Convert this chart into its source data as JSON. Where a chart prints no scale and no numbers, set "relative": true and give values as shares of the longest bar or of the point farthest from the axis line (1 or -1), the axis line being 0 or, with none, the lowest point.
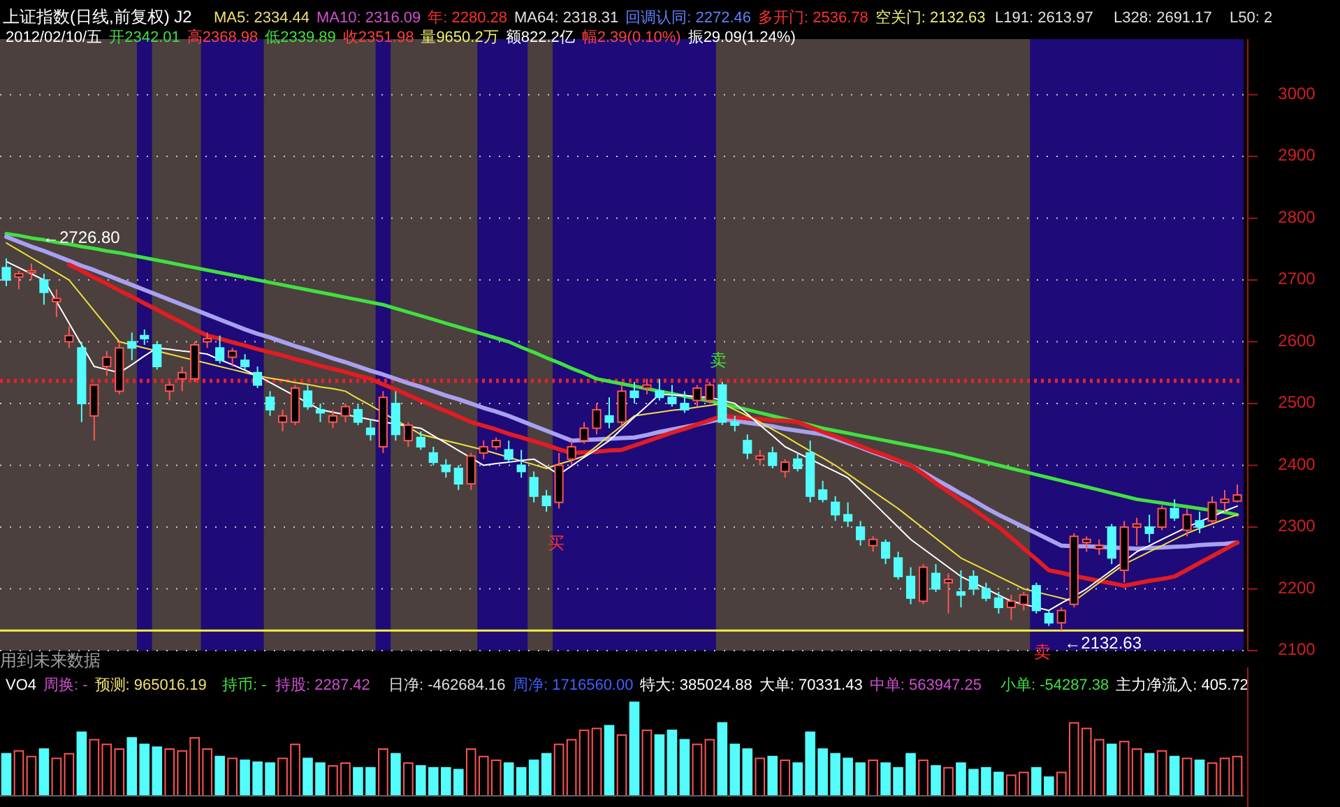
{
  "chart_data": [
    {
      "type": "candlestick",
      "title": "上证指数(日线,前复权) J2",
      "categories": [
        null,
        null,
        null,
        null,
        null,
        null,
        null,
        null,
        null,
        null,
        null,
        null,
        null,
        null,
        null,
        null,
        null,
        null,
        null,
        null,
        null,
        null,
        null,
        null,
        null,
        null,
        null,
        null,
        null,
        null,
        null,
        null,
        null,
        null,
        null,
        null,
        null,
        null,
        null,
        null,
        null,
        null,
        null,
        null,
        null,
        null,
        null,
        null,
        null,
        null,
        null,
        null,
        null,
        null,
        null,
        null,
        null,
        null,
        null,
        null,
        null,
        null,
        null,
        null,
        null,
        null,
        null,
        null,
        null,
        null,
        null,
        null,
        null,
        null,
        null,
        null,
        null,
        null,
        null,
        null,
        null,
        null,
        null,
        null,
        null,
        null,
        null,
        null,
        null,
        null,
        null,
        null,
        null,
        null,
        null,
        null,
        null,
        null,
        null
      ],
      "ohlc": [
        [
          2720,
          2735,
          2690,
          2700
        ],
        [
          2705,
          2715,
          2685,
          2710
        ],
        [
          2712,
          2726.8,
          2700,
          2715
        ],
        [
          2700,
          2710,
          2660,
          2680
        ],
        [
          2665,
          2685,
          2640,
          2670
        ],
        [
          2600,
          2625,
          2590,
          2610
        ],
        [
          2590,
          2600,
          2470,
          2500
        ],
        [
          2480,
          2530,
          2440,
          2530
        ],
        [
          2560,
          2585,
          2545,
          2575
        ],
        [
          2520,
          2600,
          2515,
          2590
        ],
        [
          2600,
          2615,
          2570,
          2590
        ],
        [
          2610,
          2620,
          2595,
          2605
        ],
        [
          2595,
          2600,
          2555,
          2560
        ],
        [
          2520,
          2535,
          2505,
          2530
        ],
        [
          2540,
          2560,
          2520,
          2550
        ],
        [
          2540,
          2600,
          2535,
          2595
        ],
        [
          2600,
          2615,
          2590,
          2605
        ],
        [
          2590,
          2610,
          2565,
          2570
        ],
        [
          2575,
          2590,
          2560,
          2585
        ],
        [
          2570,
          2580,
          2555,
          2560
        ],
        [
          2550,
          2560,
          2525,
          2530
        ],
        [
          2510,
          2520,
          2480,
          2490
        ],
        [
          2470,
          2490,
          2455,
          2480
        ],
        [
          2470,
          2530,
          2465,
          2525
        ],
        [
          2520,
          2530,
          2490,
          2495
        ],
        [
          2490,
          2500,
          2470,
          2485
        ],
        [
          2470,
          2490,
          2460,
          2480
        ],
        [
          2480,
          2500,
          2470,
          2495
        ],
        [
          2490,
          2500,
          2465,
          2470
        ],
        [
          2460,
          2475,
          2440,
          2450
        ],
        [
          2430,
          2520,
          2420,
          2510
        ],
        [
          2500,
          2520,
          2440,
          2450
        ],
        [
          2440,
          2470,
          2430,
          2465
        ],
        [
          2445,
          2455,
          2425,
          2430
        ],
        [
          2420,
          2430,
          2400,
          2405
        ],
        [
          2400,
          2410,
          2380,
          2390
        ],
        [
          2395,
          2400,
          2360,
          2370
        ],
        [
          2370,
          2420,
          2360,
          2415
        ],
        [
          2420,
          2440,
          2410,
          2430
        ],
        [
          2430,
          2445,
          2425,
          2440
        ],
        [
          2425,
          2440,
          2405,
          2410
        ],
        [
          2400,
          2425,
          2380,
          2390
        ],
        [
          2380,
          2390,
          2340,
          2350
        ],
        [
          2350,
          2360,
          2325,
          2335
        ],
        [
          2340,
          2420,
          2330,
          2400
        ],
        [
          2410,
          2440,
          2400,
          2430
        ],
        [
          2440,
          2470,
          2435,
          2460
        ],
        [
          2460,
          2500,
          2450,
          2490
        ],
        [
          2480,
          2510,
          2460,
          2470
        ],
        [
          2470,
          2530,
          2465,
          2520
        ],
        [
          2520,
          2535,
          2500,
          2510
        ],
        [
          2525,
          2540,
          2515,
          2530
        ],
        [
          2520,
          2540,
          2505,
          2510
        ],
        [
          2510,
          2530,
          2495,
          2500
        ],
        [
          2500,
          2520,
          2485,
          2490
        ],
        [
          2505,
          2530,
          2495,
          2525
        ],
        [
          2505,
          2535,
          2500,
          2530
        ],
        [
          2530,
          2535,
          2465,
          2470
        ],
        [
          2470,
          2480,
          2455,
          2465
        ],
        [
          2440,
          2450,
          2410,
          2420
        ],
        [
          2410,
          2425,
          2400,
          2415
        ],
        [
          2420,
          2430,
          2395,
          2400
        ],
        [
          2390,
          2410,
          2380,
          2405
        ],
        [
          2410,
          2420,
          2390,
          2395
        ],
        [
          2420,
          2440,
          2340,
          2350
        ],
        [
          2360,
          2375,
          2340,
          2345
        ],
        [
          2340,
          2350,
          2310,
          2320
        ],
        [
          2320,
          2340,
          2300,
          2310
        ],
        [
          2300,
          2310,
          2270,
          2280
        ],
        [
          2270,
          2285,
          2260,
          2280
        ],
        [
          2275,
          2280,
          2240,
          2250
        ],
        [
          2250,
          2260,
          2215,
          2220
        ],
        [
          2220,
          2235,
          2175,
          2185
        ],
        [
          2180,
          2240,
          2175,
          2235
        ],
        [
          2225,
          2240,
          2195,
          2200
        ],
        [
          2210,
          2225,
          2160,
          2215
        ],
        [
          2195,
          2230,
          2170,
          2190
        ],
        [
          2220,
          2230,
          2190,
          2200
        ],
        [
          2200,
          2210,
          2180,
          2185
        ],
        [
          2185,
          2195,
          2160,
          2170
        ],
        [
          2170,
          2190,
          2150,
          2180
        ],
        [
          2175,
          2195,
          2165,
          2190
        ],
        [
          2205,
          2210,
          2160,
          2165
        ],
        [
          2160,
          2165,
          2140,
          2145
        ],
        [
          2145,
          2170,
          2132.63,
          2165
        ],
        [
          2175,
          2290,
          2170,
          2285
        ],
        [
          2275,
          2285,
          2260,
          2280
        ],
        [
          2265,
          2280,
          2255,
          2270
        ],
        [
          2300,
          2305,
          2240,
          2250
        ],
        [
          2230,
          2310,
          2210,
          2300
        ],
        [
          2300,
          2315,
          2270,
          2305
        ],
        [
          2300,
          2320,
          2275,
          2290
        ],
        [
          2300,
          2335,
          2295,
          2330
        ],
        [
          2330,
          2345,
          2310,
          2315
        ],
        [
          2295,
          2330,
          2285,
          2320
        ],
        [
          2310,
          2325,
          2290,
          2300
        ],
        [
          2310,
          2350,
          2305,
          2340
        ],
        [
          2340,
          2360,
          2325,
          2345
        ],
        [
          2342.01,
          2368.98,
          2339.89,
          2351.98
        ]
      ],
      "colors": [
        "#54fcfc",
        "#ff5454",
        "#ff5454",
        "#54fcfc",
        "#ff5454",
        "#ff5454",
        "#54fcfc",
        "#ff5454",
        "#ff5454",
        "#ff5454",
        "#54fcfc",
        "#54fcfc",
        "#54fcfc",
        "#ff5454",
        "#ff5454",
        "#ff5454",
        "#ff5454",
        "#54fcfc",
        "#ff5454",
        "#54fcfc",
        "#54fcfc",
        "#54fcfc",
        "#ff5454",
        "#ff5454",
        "#54fcfc",
        "#54fcfc",
        "#ff5454",
        "#ff5454",
        "#54fcfc",
        "#54fcfc",
        "#ff5454",
        "#54fcfc",
        "#ff5454",
        "#54fcfc",
        "#54fcfc",
        "#54fcfc",
        "#54fcfc",
        "#ff5454",
        "#ff5454",
        "#ff5454",
        "#54fcfc",
        "#54fcfc",
        "#54fcfc",
        "#54fcfc",
        "#ff5454",
        "#ff5454",
        "#ff5454",
        "#ff5454",
        "#54fcfc",
        "#ff5454",
        "#54fcfc",
        "#ff5454",
        "#54fcfc",
        "#54fcfc",
        "#54fcfc",
        "#ff5454",
        "#ff5454",
        "#54fcfc",
        "#54fcfc",
        "#54fcfc",
        "#ff5454",
        "#54fcfc",
        "#ff5454",
        "#54fcfc",
        "#54fcfc",
        "#54fcfc",
        "#54fcfc",
        "#54fcfc",
        "#54fcfc",
        "#ff5454",
        "#54fcfc",
        "#54fcfc",
        "#54fcfc",
        "#ff5454",
        "#54fcfc",
        "#ff5454",
        "#54fcfc",
        "#54fcfc",
        "#54fcfc",
        "#54fcfc",
        "#ff5454",
        "#ff5454",
        "#54fcfc",
        "#54fcfc",
        "#ff5454",
        "#ff5454",
        "#ff5454",
        "#ff5454",
        "#54fcfc",
        "#ff5454",
        "#ff5454",
        "#54fcfc",
        "#ff5454",
        "#54fcfc",
        "#ff5454",
        "#54fcfc",
        "#ff5454",
        "#ff5454",
        "#ff5454"
      ],
      "series": [
        {
          "type": "line",
          "color": "#40e040",
          "values": [
            2775,
            2772,
            2768,
            2765,
            2761,
            2758,
            2754,
            2751,
            2747,
            2744,
            2740,
            2736,
            2732,
            2728,
            2724,
            2720,
            2716,
            2712,
            2708,
            2704,
            2700,
            2696,
            2692,
            2688,
            2684,
            2680,
            2676,
            2672,
            2668,
            2664,
            2660,
            2654,
            2648,
            2642,
            2636,
            2630,
            2624,
            2618,
            2612,
            2606,
            2600,
            2591,
            2583,
            2574,
            2566,
            2557,
            2549,
            2540,
            2536,
            2532,
            2528,
            2524,
            2520,
            2516,
            2512,
            2508,
            2504,
            2500,
            2495,
            2490,
            2485,
            2480,
            2475,
            2470,
            2465,
            2460,
            2456,
            2452,
            2448,
            2444,
            2440,
            2436,
            2432,
            2428,
            2424,
            2420,
            2415,
            2410,
            2405,
            2400,
            2395,
            2390,
            2385,
            2380,
            2375,
            2370,
            2365,
            2360,
            2355,
            2350,
            2345,
            2342,
            2339,
            2336,
            2333,
            2330,
            2327,
            2324,
            2320
          ]
        },
        {
          "type": "line",
          "color": "#a8a0f0",
          "values": [
            2770,
            2762,
            2754,
            2747,
            2739,
            2731,
            2723,
            2716,
            2708,
            2700,
            2692,
            2684,
            2676,
            2668,
            2660,
            2652,
            2644,
            2636,
            2628,
            2620,
            2613,
            2607,
            2600,
            2593,
            2587,
            2580,
            2573,
            2567,
            2560,
            2553,
            2547,
            2540,
            2533,
            2527,
            2520,
            2513,
            2507,
            2500,
            2493,
            2487,
            2480,
            2472,
            2464,
            2456,
            2448,
            2440,
            2441,
            2442,
            2443,
            2444,
            2445,
            2449,
            2454,
            2458,
            2462,
            2466,
            2471,
            2475,
            2472,
            2469,
            2466,
            2463,
            2459,
            2456,
            2453,
            2450,
            2443,
            2436,
            2429,
            2421,
            2414,
            2407,
            2400,
            2389,
            2377,
            2366,
            2354,
            2343,
            2331,
            2320,
            2310,
            2300,
            2290,
            2280,
            2270,
            2269,
            2269,
            2268,
            2267,
            2266,
            2265,
            2266,
            2267,
            2268,
            2269,
            2271,
            2272,
            2273,
            2275
          ]
        },
        {
          "type": "line",
          "color": "#e01c24",
          "values": [
            null,
            null,
            null,
            null,
            null,
            2725,
            2715,
            2704,
            2694,
            2683,
            2673,
            2662,
            2652,
            2641,
            2631,
            2620,
            2610,
            2605,
            2599,
            2594,
            2588,
            2583,
            2578,
            2572,
            2567,
            2561,
            2556,
            2551,
            2545,
            2540,
            2531,
            2523,
            2514,
            2505,
            2496,
            2488,
            2479,
            2470,
            2464,
            2458,
            2451,
            2445,
            2439,
            2433,
            2426,
            2420,
            2421,
            2422,
            2424,
            2425,
            2432,
            2439,
            2446,
            2453,
            2459,
            2466,
            2473,
            2480,
            2478,
            2476,
            2475,
            2473,
            2472,
            2470,
            2462,
            2454,
            2447,
            2439,
            2431,
            2423,
            2416,
            2408,
            2400,
            2386,
            2371,
            2357,
            2343,
            2329,
            2314,
            2300,
            2283,
            2265,
            2248,
            2230,
            2226,
            2221,
            2217,
            2213,
            2209,
            2205,
            2209,
            2213,
            2216,
            2220,
            2231,
            2242,
            2253,
            2264,
            2275
          ]
        },
        {
          "type": "line",
          "color": "#f0e040",
          "values": [
            2760,
            2748,
            2736,
            2724,
            2712,
            2700,
            2675,
            2650,
            2625,
            2600,
            2595,
            2590,
            2585,
            2580,
            2575,
            2570,
            2565,
            2560,
            2555,
            2550,
            2545,
            2541,
            2538,
            2534,
            2531,
            2527,
            2524,
            2520,
            2508,
            2497,
            2485,
            2473,
            2462,
            2450,
            2445,
            2440,
            2435,
            2430,
            2425,
            2419,
            2413,
            2407,
            2401,
            2395,
            2402,
            2408,
            2415,
            2431,
            2448,
            2464,
            2480,
            2483,
            2486,
            2489,
            2491,
            2494,
            2497,
            2500,
            2490,
            2480,
            2470,
            2458,
            2447,
            2435,
            2423,
            2412,
            2400,
            2386,
            2372,
            2358,
            2344,
            2330,
            2314,
            2298,
            2282,
            2266,
            2250,
            2240,
            2230,
            2220,
            2210,
            2200,
            2195,
            2190,
            2185,
            2180,
            2195,
            2210,
            2225,
            2240,
            2250,
            2260,
            2270,
            2280,
            2290,
            2298,
            2305,
            2313,
            2320
          ]
        },
        {
          "type": "line",
          "color": "#ffffff",
          "values": [
            2730,
            2720,
            2710,
            2700,
            2665,
            2630,
            2595,
            2560,
            2555,
            2550,
            2563,
            2577,
            2590,
            2588,
            2585,
            2583,
            2580,
            2571,
            2563,
            2554,
            2545,
            2534,
            2523,
            2512,
            2501,
            2490,
            2486,
            2482,
            2478,
            2474,
            2470,
            2467,
            2463,
            2460,
            2448,
            2436,
            2424,
            2412,
            2400,
            2403,
            2405,
            2408,
            2410,
            2398,
            2385,
            2399,
            2413,
            2426,
            2440,
            2459,
            2478,
            2496,
            2515,
            2514,
            2513,
            2511,
            2510,
            2505,
            2500,
            2483,
            2465,
            2448,
            2430,
            2420,
            2410,
            2400,
            2390,
            2380,
            2360,
            2340,
            2320,
            2300,
            2280,
            2265,
            2250,
            2235,
            2220,
            2210,
            2200,
            2190,
            2180,
            2175,
            2170,
            2165,
            2177,
            2188,
            2200,
            2215,
            2230,
            2245,
            2260,
            2270,
            2280,
            2290,
            2300,
            2309,
            2317,
            2326,
            2334
          ]
        }
      ],
      "ylim": [
        2100,
        3090
      ],
      "yticks": [
        2100,
        2200,
        2300,
        2400,
        2500,
        2600,
        2700,
        2800,
        2900,
        3000
      ],
      "grid": "y",
      "tick_labels": "y",
      "ref_lines": [
        {
          "axis": "y",
          "value": 2536.78,
          "color": "#e8202c",
          "line_style": "dotted"
        },
        {
          "axis": "y",
          "value": 2132.63,
          "color": "#f0f040",
          "line_style": "solid"
        }
      ],
      "annotations": [
        "MA5: 2334.44",
        "MA10: 2316.09",
        "年: 2280.28",
        "MA64: 2318.31",
        "回调认同: 2272.46",
        "多开门: 2536.78",
        "空关门: 2132.63",
        "L191: 2613.97",
        "L328: 2691.17",
        "L50: 2",
        "2012/02/10/五",
        "开2342.01",
        "高2368.98",
        "低2339.89",
        "收2351.98",
        "量9650.2万",
        "额822.2亿",
        "幅2.39(0.10%)",
        "振29.09(1.24%)",
        {
          "text": "←2726.80",
          "y": 2726.8
        },
        "卖",
        "买",
        "卖",
        {
          "text": "←2132.63",
          "y": 2132.63
        },
        "用到未来数据"
      ]
    },
    {
      "type": "bar",
      "relative": true,
      "tick_labels": false,
      "categories": [
        null,
        null,
        null,
        null,
        null,
        null,
        null,
        null,
        null,
        null,
        null,
        null,
        null,
        null,
        null,
        null,
        null,
        null,
        null,
        null,
        null,
        null,
        null,
        null,
        null,
        null,
        null,
        null,
        null,
        null,
        null,
        null,
        null,
        null,
        null,
        null,
        null,
        null,
        null,
        null,
        null,
        null,
        null,
        null,
        null,
        null,
        null,
        null,
        null,
        null,
        null,
        null,
        null,
        null,
        null,
        null,
        null,
        null,
        null,
        null,
        null,
        null,
        null,
        null,
        null,
        null,
        null,
        null,
        null,
        null,
        null,
        null,
        null,
        null,
        null,
        null,
        null,
        null,
        null,
        null,
        null,
        null,
        null,
        null,
        null,
        null,
        null,
        null,
        null,
        null,
        null,
        null,
        null,
        null,
        null,
        null,
        null,
        null,
        null
      ],
      "values": [
        0.45,
        0.48,
        0.42,
        0.5,
        0.4,
        0.45,
        0.68,
        0.6,
        0.55,
        0.5,
        0.62,
        0.55,
        0.52,
        0.5,
        0.48,
        0.62,
        0.5,
        0.42,
        0.4,
        0.38,
        0.36,
        0.35,
        0.4,
        0.55,
        0.4,
        0.35,
        0.32,
        0.35,
        0.3,
        0.3,
        0.5,
        0.45,
        0.35,
        0.32,
        0.3,
        0.3,
        0.28,
        0.5,
        0.42,
        0.38,
        0.35,
        0.3,
        0.38,
        0.45,
        0.55,
        0.6,
        0.7,
        0.72,
        0.75,
        0.65,
        1,
        0.7,
        0.65,
        0.7,
        0.6,
        0.55,
        0.6,
        0.78,
        0.55,
        0.5,
        0.4,
        0.42,
        0.38,
        0.35,
        0.68,
        0.5,
        0.45,
        0.4,
        0.35,
        0.38,
        0.35,
        0.3,
        0.45,
        0.38,
        0.32,
        0.3,
        0.35,
        0.28,
        0.3,
        0.25,
        0.22,
        0.25,
        0.3,
        0.2,
        0.25,
        0.78,
        0.72,
        0.6,
        0.55,
        0.58,
        0.5,
        0.45,
        0.48,
        0.42,
        0.4,
        0.38,
        0.35,
        0.4,
        0.42
      ],
      "colors": [
        "#54fcfc",
        "#ff5454",
        "#ff5454",
        "#54fcfc",
        "#ff5454",
        "#ff5454",
        "#54fcfc",
        "#ff5454",
        "#ff5454",
        "#ff5454",
        "#54fcfc",
        "#54fcfc",
        "#54fcfc",
        "#ff5454",
        "#ff5454",
        "#ff5454",
        "#ff5454",
        "#54fcfc",
        "#ff5454",
        "#54fcfc",
        "#54fcfc",
        "#54fcfc",
        "#ff5454",
        "#ff5454",
        "#54fcfc",
        "#54fcfc",
        "#ff5454",
        "#ff5454",
        "#54fcfc",
        "#54fcfc",
        "#ff5454",
        "#54fcfc",
        "#ff5454",
        "#54fcfc",
        "#54fcfc",
        "#54fcfc",
        "#54fcfc",
        "#ff5454",
        "#ff5454",
        "#ff5454",
        "#54fcfc",
        "#54fcfc",
        "#54fcfc",
        "#54fcfc",
        "#ff5454",
        "#ff5454",
        "#ff5454",
        "#ff5454",
        "#54fcfc",
        "#ff5454",
        "#54fcfc",
        "#ff5454",
        "#54fcfc",
        "#54fcfc",
        "#54fcfc",
        "#ff5454",
        "#ff5454",
        "#54fcfc",
        "#54fcfc",
        "#54fcfc",
        "#ff5454",
        "#54fcfc",
        "#ff5454",
        "#54fcfc",
        "#54fcfc",
        "#54fcfc",
        "#54fcfc",
        "#54fcfc",
        "#54fcfc",
        "#ff5454",
        "#54fcfc",
        "#54fcfc",
        "#54fcfc",
        "#ff5454",
        "#54fcfc",
        "#ff5454",
        "#54fcfc",
        "#54fcfc",
        "#54fcfc",
        "#54fcfc",
        "#ff5454",
        "#ff5454",
        "#54fcfc",
        "#54fcfc",
        "#ff5454",
        "#ff5454",
        "#ff5454",
        "#ff5454",
        "#54fcfc",
        "#ff5454",
        "#ff5454",
        "#54fcfc",
        "#ff5454",
        "#54fcfc",
        "#ff5454",
        "#54fcfc",
        "#ff5454",
        "#ff5454",
        "#ff5454"
      ],
      "annotations": [
        "VO4",
        "周换: -",
        "预测: 965016.19",
        "持币: -",
        "持股: 2287.42",
        "日净: -462684.16",
        "周净: 1716560.00",
        "特大: 385024.88",
        "大单: 70331.43",
        "中单: 563947.25",
        "小单: -54287.38",
        "主力净流入: 405.72"
      ]
    }
  ]
}
